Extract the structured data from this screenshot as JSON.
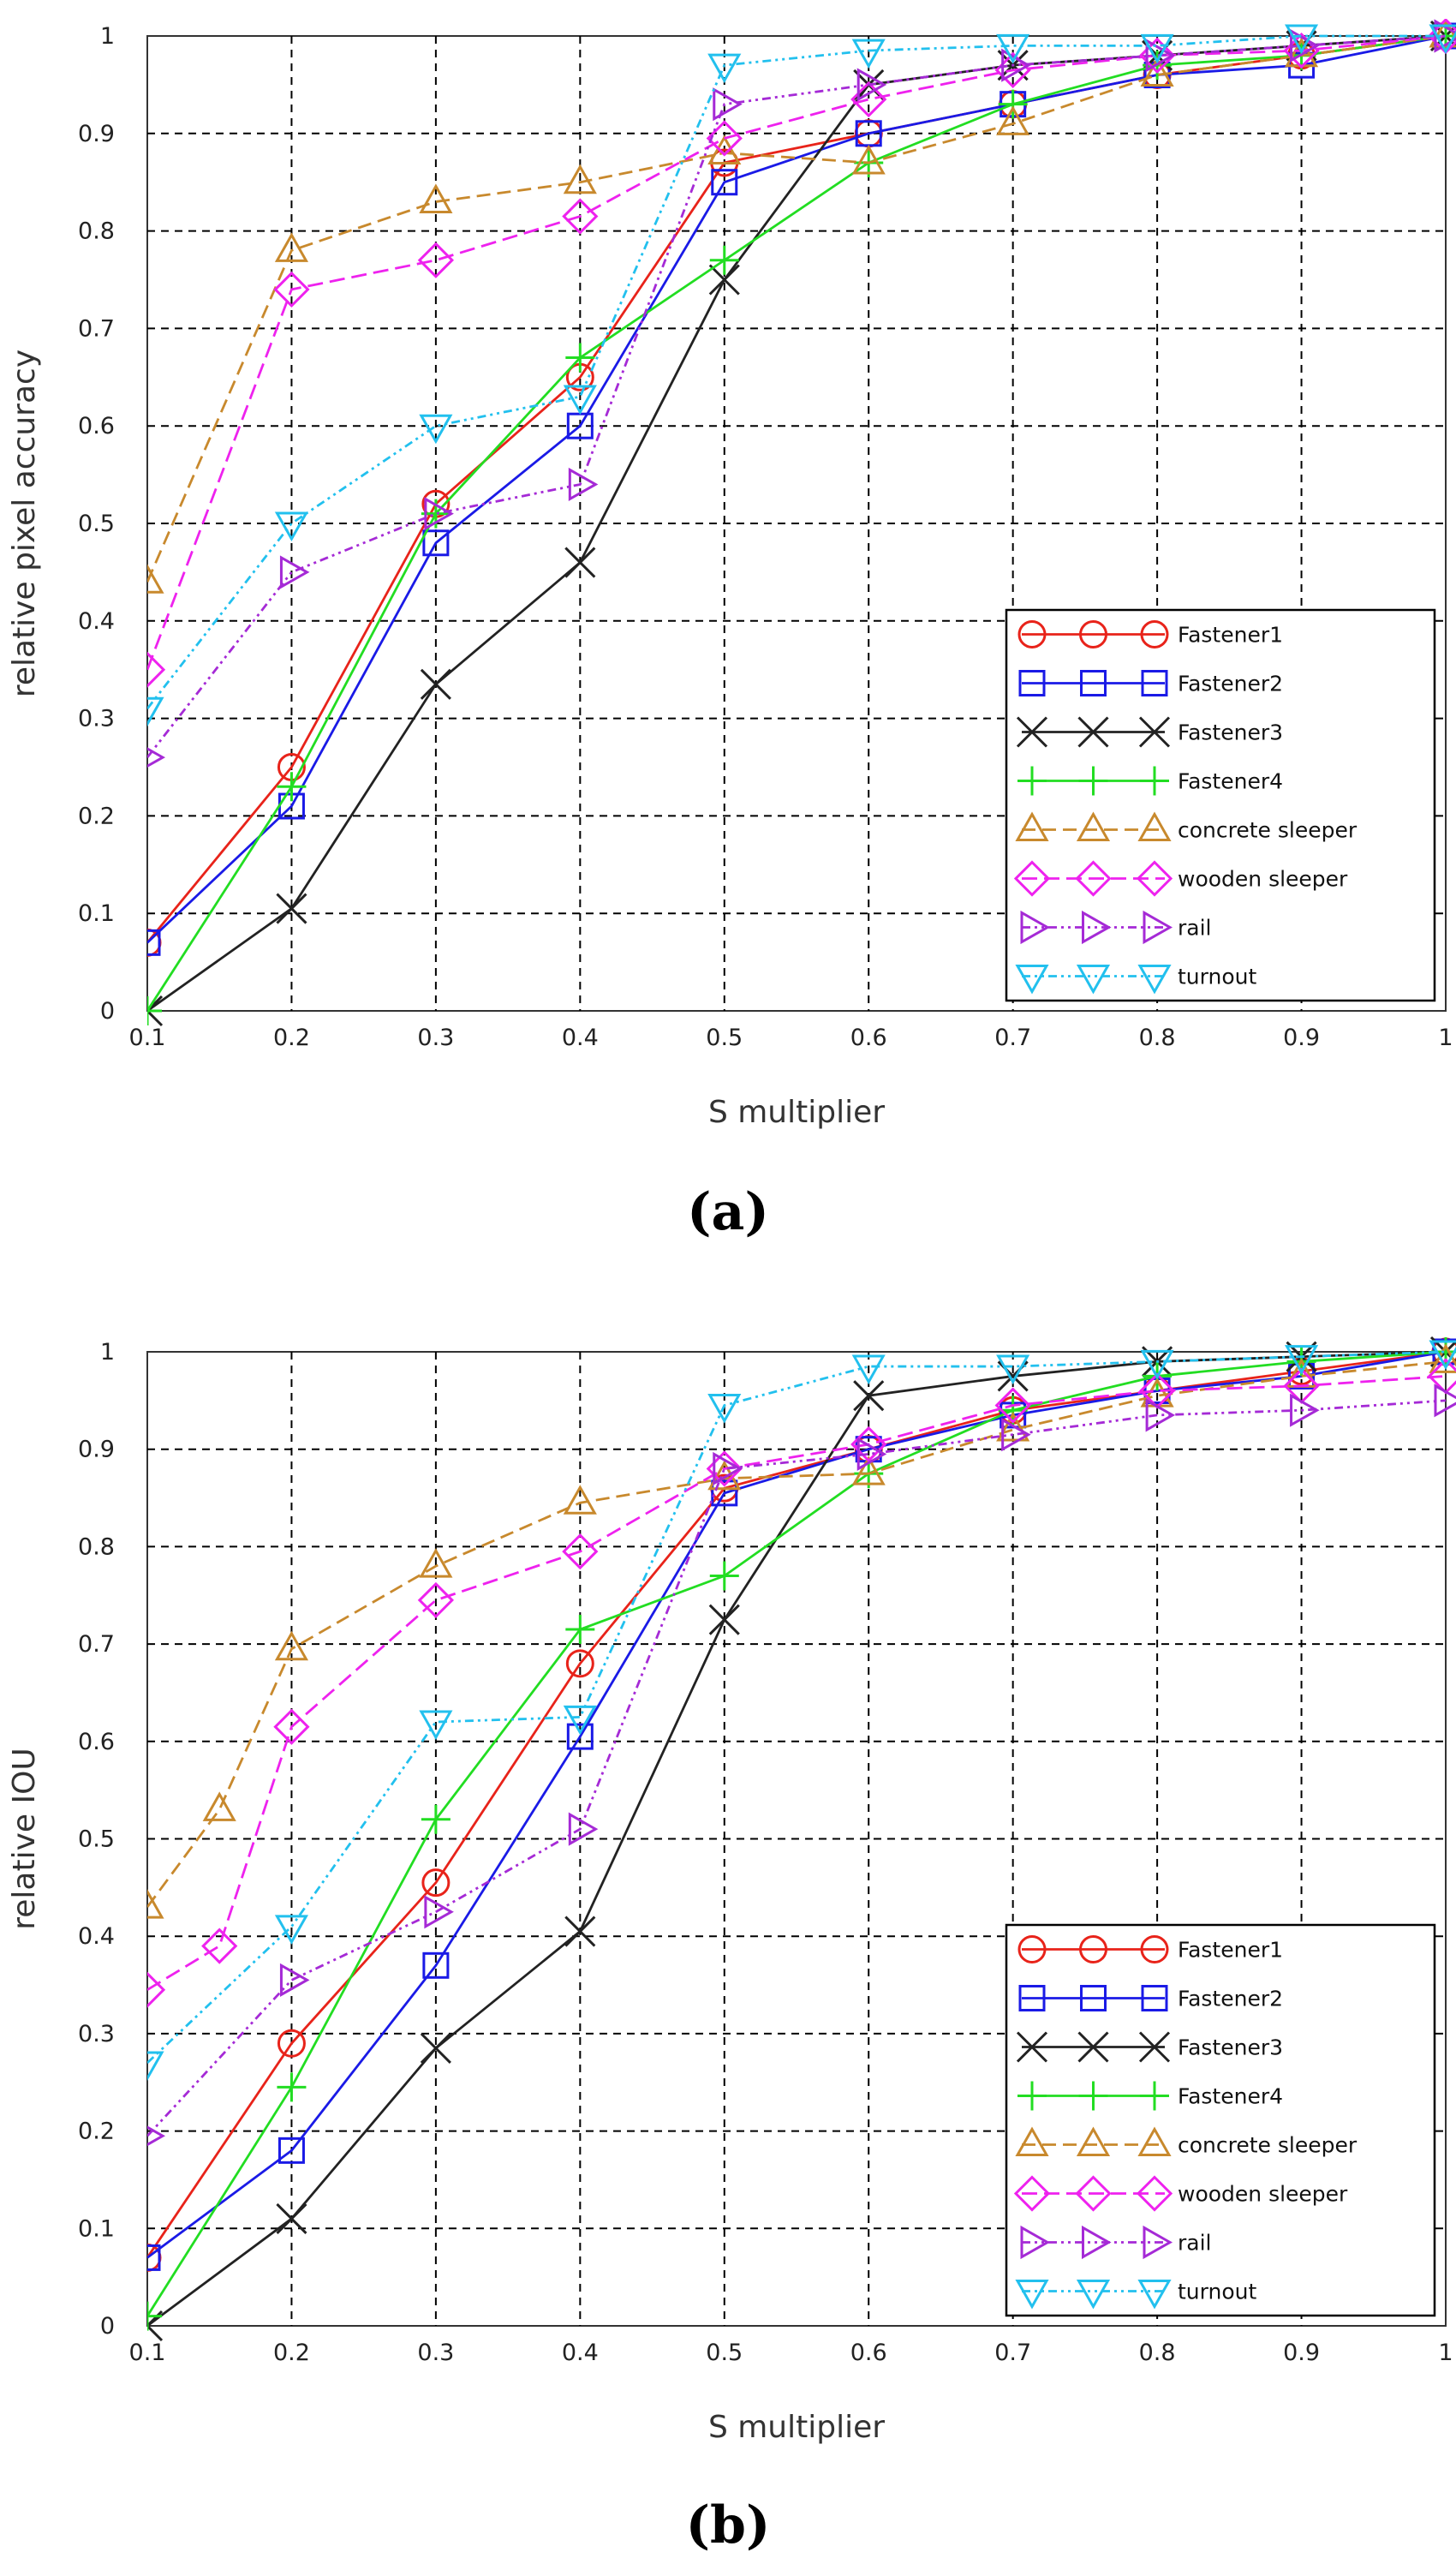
{
  "chart_data": [
    {
      "type": "line",
      "panel_label": "(a)",
      "title": "",
      "xlabel": "S multiplier",
      "ylabel": "relative pixel accuracy",
      "xlim": [
        0.1,
        1
      ],
      "ylim": [
        0,
        1
      ],
      "grid": true,
      "legend_position": "bottom-right",
      "x_ticks": [
        "0.1",
        "0.2",
        "0.3",
        "0.4",
        "0.5",
        "0.6",
        "0.7",
        "0.8",
        "0.9",
        "1"
      ],
      "y_ticks": [
        "0",
        "0.1",
        "0.2",
        "0.3",
        "0.4",
        "0.5",
        "0.6",
        "0.7",
        "0.8",
        "0.9",
        "1"
      ],
      "x": [
        0.1,
        0.2,
        0.3,
        0.4,
        0.5,
        0.6,
        0.7,
        0.8,
        0.9,
        1.0
      ],
      "series": [
        {
          "name": "Fastener1",
          "color": "#e8231a",
          "marker": "circle",
          "dash": "",
          "values": [
            0.07,
            0.25,
            0.52,
            0.65,
            0.87,
            0.9,
            0.93,
            0.96,
            0.98,
            1.0
          ]
        },
        {
          "name": "Fastener2",
          "color": "#1a1ae6",
          "marker": "square",
          "dash": "",
          "values": [
            0.07,
            0.21,
            0.48,
            0.6,
            0.85,
            0.9,
            0.93,
            0.96,
            0.97,
            1.0
          ]
        },
        {
          "name": "Fastener3",
          "color": "#222222",
          "marker": "x",
          "dash": "",
          "values": [
            0.0,
            0.105,
            0.335,
            0.46,
            0.75,
            0.95,
            0.97,
            0.98,
            0.99,
            1.0
          ]
        },
        {
          "name": "Fastener4",
          "color": "#22dd22",
          "marker": "plus",
          "dash": "",
          "values": [
            0.0,
            0.23,
            0.51,
            0.67,
            0.77,
            0.87,
            0.93,
            0.97,
            0.98,
            1.0
          ]
        },
        {
          "name": "concrete sleeper",
          "color": "#c8892d",
          "marker": "triangle-up",
          "dash": "16,8",
          "values": [
            0.44,
            0.78,
            0.83,
            0.85,
            0.88,
            0.87,
            0.91,
            0.96,
            0.98,
            1.0
          ]
        },
        {
          "name": "wooden sleeper",
          "color": "#ee22ee",
          "marker": "diamond",
          "dash": "18,8",
          "values": [
            0.35,
            0.74,
            0.77,
            0.815,
            0.895,
            0.935,
            0.965,
            0.98,
            0.985,
            1.0
          ]
        },
        {
          "name": "rail",
          "color": "#a52ad6",
          "marker": "triangle-right",
          "dash": "10,5,3,5,3,5",
          "values": [
            0.26,
            0.45,
            0.51,
            0.54,
            0.93,
            0.95,
            0.97,
            0.98,
            0.99,
            1.0
          ]
        },
        {
          "name": "turnout",
          "color": "#22c0ee",
          "marker": "triangle-down",
          "dash": "10,5,3,5,3,5",
          "values": [
            0.31,
            0.5,
            0.6,
            0.63,
            0.97,
            0.985,
            0.99,
            0.99,
            1.0,
            1.0
          ]
        }
      ]
    },
    {
      "type": "line",
      "panel_label": "(b)",
      "title": "",
      "xlabel": "S multiplier",
      "ylabel": "relative IOU",
      "xlim": [
        0.1,
        1
      ],
      "ylim": [
        0,
        1
      ],
      "grid": true,
      "legend_position": "bottom-right",
      "x_ticks": [
        "0.1",
        "0.2",
        "0.3",
        "0.4",
        "0.5",
        "0.6",
        "0.7",
        "0.8",
        "0.9",
        "1"
      ],
      "y_ticks": [
        "0",
        "0.1",
        "0.2",
        "0.3",
        "0.4",
        "0.5",
        "0.6",
        "0.7",
        "0.8",
        "0.9",
        "1"
      ],
      "x": [
        0.1,
        0.2,
        0.3,
        0.4,
        0.5,
        0.6,
        0.7,
        0.8,
        0.9,
        1.0
      ],
      "series": [
        {
          "name": "Fastener1",
          "color": "#e8231a",
          "marker": "circle",
          "dash": "",
          "values": [
            0.07,
            0.29,
            0.455,
            0.68,
            0.86,
            0.9,
            0.94,
            0.96,
            0.98,
            1.0
          ]
        },
        {
          "name": "Fastener2",
          "color": "#1a1ae6",
          "marker": "square",
          "dash": "",
          "values": [
            0.07,
            0.18,
            0.37,
            0.605,
            0.855,
            0.9,
            0.935,
            0.96,
            0.975,
            1.0
          ]
        },
        {
          "name": "Fastener3",
          "color": "#222222",
          "marker": "x",
          "dash": "",
          "values": [
            0.0,
            0.11,
            0.285,
            0.405,
            0.725,
            0.955,
            0.975,
            0.99,
            0.995,
            1.0
          ]
        },
        {
          "name": "Fastener4",
          "color": "#22dd22",
          "marker": "plus",
          "dash": "",
          "values": [
            0.01,
            0.245,
            0.52,
            0.715,
            0.77,
            0.875,
            0.94,
            0.975,
            0.99,
            1.0
          ]
        },
        {
          "name": "concrete sleeper",
          "x": [
            0.1,
            0.15,
            0.2,
            0.3,
            0.4,
            0.5,
            0.6,
            0.7,
            0.8,
            0.9,
            1.0
          ],
          "color": "#c8892d",
          "marker": "triangle-up",
          "dash": "16,8",
          "values": [
            0.43,
            0.53,
            0.695,
            0.78,
            0.845,
            0.87,
            0.875,
            0.92,
            0.955,
            0.975,
            0.99
          ]
        },
        {
          "name": "wooden sleeper",
          "x": [
            0.1,
            0.15,
            0.2,
            0.3,
            0.4,
            0.5,
            0.6,
            0.7,
            0.8,
            0.9,
            1.0
          ],
          "color": "#ee22ee",
          "marker": "diamond",
          "dash": "18,8",
          "values": [
            0.345,
            0.39,
            0.615,
            0.745,
            0.795,
            0.88,
            0.905,
            0.945,
            0.96,
            0.965,
            0.975
          ]
        },
        {
          "name": "rail",
          "color": "#a52ad6",
          "marker": "triangle-right",
          "dash": "10,5,3,5,3,5",
          "values": [
            0.195,
            0.355,
            0.425,
            0.51,
            0.88,
            0.895,
            0.915,
            0.935,
            0.94,
            0.95
          ]
        },
        {
          "name": "turnout",
          "color": "#22c0ee",
          "marker": "triangle-down",
          "dash": "10,5,3,5,3,5",
          "values": [
            0.27,
            0.41,
            0.62,
            0.625,
            0.945,
            0.985,
            0.985,
            0.99,
            0.995,
            1.0
          ]
        }
      ]
    }
  ]
}
